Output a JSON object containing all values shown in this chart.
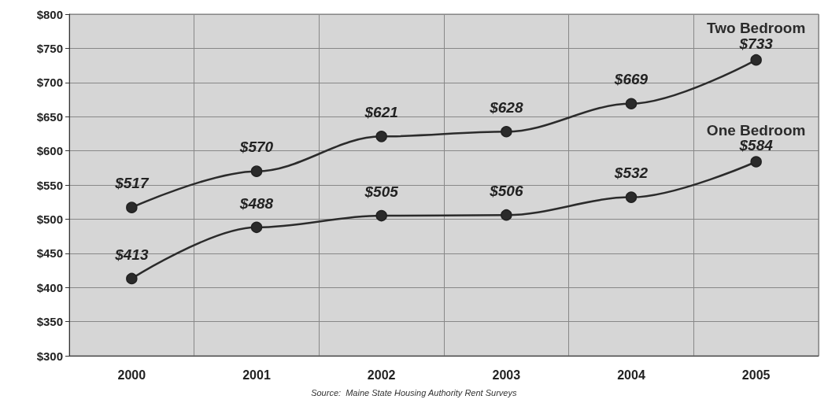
{
  "chart_data": {
    "type": "line",
    "categories": [
      "2000",
      "2001",
      "2002",
      "2003",
      "2004",
      "2005"
    ],
    "series": [
      {
        "name": "Two Bedroom",
        "color": "#2b2b2b",
        "values": [
          517,
          570,
          621,
          628,
          669,
          733
        ],
        "value_labels": [
          "$517",
          "$570",
          "$621",
          "$628",
          "$669",
          "$733"
        ]
      },
      {
        "name": "One Bedroom",
        "color": "#2b2b2b",
        "values": [
          413,
          488,
          505,
          506,
          532,
          584
        ],
        "value_labels": [
          "$413",
          "$488",
          "$505",
          "$506",
          "$532",
          "$584"
        ]
      }
    ],
    "ylim": [
      300,
      800
    ],
    "yticks": [
      {
        "value": 300,
        "label": "$300"
      },
      {
        "value": 350,
        "label": "$350"
      },
      {
        "value": 400,
        "label": "$400"
      },
      {
        "value": 450,
        "label": "$450"
      },
      {
        "value": 500,
        "label": "$500"
      },
      {
        "value": 550,
        "label": "$550"
      },
      {
        "value": 600,
        "label": "$600"
      },
      {
        "value": 650,
        "label": "$650"
      },
      {
        "value": 700,
        "label": "$700"
      },
      {
        "value": 750,
        "label": "$750"
      },
      {
        "value": 800,
        "label": "$800"
      }
    ],
    "grid": true,
    "marker": "circle",
    "line_style": "solid",
    "legend": false,
    "annotations": [
      "Source:  Maine State Housing Authority Rent Surveys"
    ]
  }
}
